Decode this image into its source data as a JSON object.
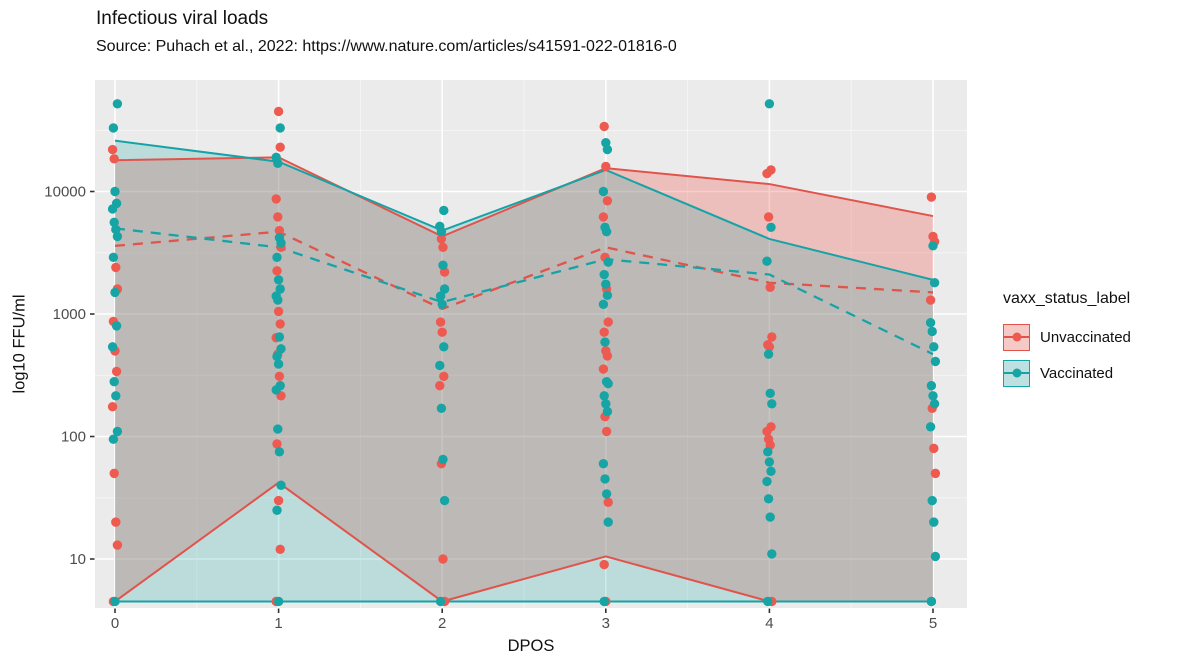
{
  "header": {
    "title": "Infectious viral loads",
    "subtitle": "Source: Puhach et al., 2022: https://www.nature.com/articles/s41591-022-01816-0"
  },
  "chart_data": {
    "type": "scatter",
    "title": "Infectious viral loads",
    "subtitle": "Source: Puhach et al., 2022: https://www.nature.com/articles/s41591-022-01816-0",
    "xlabel": "DPOS",
    "ylabel": "log10 FFU/ml",
    "x_ticks": [
      0,
      1,
      2,
      3,
      4,
      5
    ],
    "x_tick_labels": [
      "0",
      "1",
      "2",
      "3",
      "4",
      "5"
    ],
    "y_ticks": [
      10,
      100,
      1000,
      10000
    ],
    "y_tick_labels": [
      "10",
      "100",
      "1000",
      "10000"
    ],
    "y_scale": "log10",
    "ylim": [
      4,
      82000
    ],
    "grid": true,
    "panel_color": "#ebebeb",
    "grid_color": "#ffffff",
    "tick_color": "#333333",
    "tick_label_color": "#4d4d4d",
    "legend": {
      "title": "vaxx_status_label",
      "position": "right"
    },
    "series": [
      {
        "name": "Unvaccinated",
        "point_color": "#ee5a50",
        "line_color": "#e0544b",
        "ribbon_fill": "rgba(238,90,80,0.30)",
        "key_fill": "#f5cac6",
        "ribbon_upper": [
          18000,
          19000,
          4300,
          15500,
          11500,
          6300
        ],
        "ribbon_lower": [
          4.5,
          42,
          4.5,
          10.5,
          4.5,
          4.5
        ],
        "dashed_line": [
          3600,
          4700,
          1100,
          3500,
          1800,
          1500
        ],
        "points": [
          [
            0,
            22000
          ],
          [
            0,
            18500
          ],
          [
            0,
            2400
          ],
          [
            0,
            1600
          ],
          [
            0,
            870
          ],
          [
            0,
            500
          ],
          [
            0,
            340
          ],
          [
            0,
            175
          ],
          [
            0,
            50
          ],
          [
            0,
            20
          ],
          [
            0,
            13
          ],
          [
            0,
            4.5
          ],
          [
            1,
            45000
          ],
          [
            1,
            23000
          ],
          [
            1,
            8700
          ],
          [
            1,
            6200
          ],
          [
            1,
            4800
          ],
          [
            1,
            3500
          ],
          [
            1,
            2250
          ],
          [
            1,
            1050
          ],
          [
            1,
            830
          ],
          [
            1,
            640
          ],
          [
            1,
            470
          ],
          [
            1,
            310
          ],
          [
            1,
            215
          ],
          [
            1,
            87
          ],
          [
            1,
            30
          ],
          [
            1,
            12
          ],
          [
            1,
            4.5
          ],
          [
            2,
            4100
          ],
          [
            2,
            3500
          ],
          [
            2,
            2200
          ],
          [
            2,
            860
          ],
          [
            2,
            710
          ],
          [
            2,
            310
          ],
          [
            2,
            260
          ],
          [
            2,
            60
          ],
          [
            2,
            10
          ],
          [
            2,
            4.5
          ],
          [
            3,
            34000
          ],
          [
            3,
            16000
          ],
          [
            3,
            8400
          ],
          [
            3,
            6200
          ],
          [
            3,
            2900
          ],
          [
            3,
            1600
          ],
          [
            3,
            860
          ],
          [
            3,
            710
          ],
          [
            3,
            500
          ],
          [
            3,
            455
          ],
          [
            3,
            355
          ],
          [
            3,
            145
          ],
          [
            3,
            110
          ],
          [
            3,
            29
          ],
          [
            3,
            9
          ],
          [
            3,
            4.5
          ],
          [
            4,
            15000
          ],
          [
            4,
            14000
          ],
          [
            4,
            6200
          ],
          [
            4,
            1650
          ],
          [
            4,
            650
          ],
          [
            4,
            560
          ],
          [
            4,
            540
          ],
          [
            4,
            120
          ],
          [
            4,
            110
          ],
          [
            4,
            95
          ],
          [
            4,
            85
          ],
          [
            4,
            4.5
          ],
          [
            5,
            9000
          ],
          [
            5,
            4300
          ],
          [
            5,
            3900
          ],
          [
            5,
            1300
          ],
          [
            5,
            170
          ],
          [
            5,
            80
          ],
          [
            5,
            50
          ],
          [
            5,
            4.5
          ]
        ]
      },
      {
        "name": "Vaccinated",
        "point_color": "#17a4a4",
        "line_color": "#16a3a7",
        "ribbon_fill": "rgba(23,164,164,0.22)",
        "key_fill": "#bfe0e0",
        "ribbon_upper": [
          26000,
          17500,
          4800,
          15000,
          4100,
          1900
        ],
        "ribbon_lower": [
          4.5,
          4.5,
          4.5,
          4.5,
          4.5,
          4.5
        ],
        "dashed_line": [
          5000,
          3500,
          1250,
          2800,
          2100,
          470
        ],
        "points": [
          [
            0,
            52000
          ],
          [
            0,
            33000
          ],
          [
            0,
            10000
          ],
          [
            0,
            8000
          ],
          [
            0,
            7200
          ],
          [
            0,
            5600
          ],
          [
            0,
            4900
          ],
          [
            0,
            4300
          ],
          [
            0,
            2900
          ],
          [
            0,
            1500
          ],
          [
            0,
            800
          ],
          [
            0,
            540
          ],
          [
            0,
            280
          ],
          [
            0,
            215
          ],
          [
            0,
            110
          ],
          [
            0,
            95
          ],
          [
            0,
            4.5
          ],
          [
            1,
            33000
          ],
          [
            1,
            19000
          ],
          [
            1,
            17000
          ],
          [
            1,
            4200
          ],
          [
            1,
            3800
          ],
          [
            1,
            2900
          ],
          [
            1,
            1900
          ],
          [
            1,
            1600
          ],
          [
            1,
            1400
          ],
          [
            1,
            1300
          ],
          [
            1,
            650
          ],
          [
            1,
            520
          ],
          [
            1,
            450
          ],
          [
            1,
            390
          ],
          [
            1,
            260
          ],
          [
            1,
            240
          ],
          [
            1,
            115
          ],
          [
            1,
            75
          ],
          [
            1,
            40
          ],
          [
            1,
            25
          ],
          [
            1,
            4.5
          ],
          [
            2,
            7000
          ],
          [
            2,
            5200
          ],
          [
            2,
            4700
          ],
          [
            2,
            2500
          ],
          [
            2,
            1600
          ],
          [
            2,
            1400
          ],
          [
            2,
            1200
          ],
          [
            2,
            540
          ],
          [
            2,
            380
          ],
          [
            2,
            170
          ],
          [
            2,
            65
          ],
          [
            2,
            30
          ],
          [
            2,
            4.5
          ],
          [
            3,
            25000
          ],
          [
            3,
            22000
          ],
          [
            3,
            10000
          ],
          [
            3,
            5100
          ],
          [
            3,
            4700
          ],
          [
            3,
            2650
          ],
          [
            3,
            2100
          ],
          [
            3,
            1750
          ],
          [
            3,
            1420
          ],
          [
            3,
            1200
          ],
          [
            3,
            590
          ],
          [
            3,
            280
          ],
          [
            3,
            270
          ],
          [
            3,
            215
          ],
          [
            3,
            185
          ],
          [
            3,
            160
          ],
          [
            3,
            60
          ],
          [
            3,
            45
          ],
          [
            3,
            34
          ],
          [
            3,
            20
          ],
          [
            3,
            4.5
          ],
          [
            4,
            52000
          ],
          [
            4,
            5100
          ],
          [
            4,
            2700
          ],
          [
            4,
            470
          ],
          [
            4,
            225
          ],
          [
            4,
            185
          ],
          [
            4,
            75
          ],
          [
            4,
            62
          ],
          [
            4,
            52
          ],
          [
            4,
            43
          ],
          [
            4,
            31
          ],
          [
            4,
            22
          ],
          [
            4,
            11
          ],
          [
            4,
            4.5
          ],
          [
            5,
            3600
          ],
          [
            5,
            1800
          ],
          [
            5,
            850
          ],
          [
            5,
            720
          ],
          [
            5,
            540
          ],
          [
            5,
            410
          ],
          [
            5,
            260
          ],
          [
            5,
            215
          ],
          [
            5,
            185
          ],
          [
            5,
            120
          ],
          [
            5,
            30
          ],
          [
            5,
            20
          ],
          [
            5,
            10.5
          ],
          [
            5,
            4.5
          ]
        ]
      }
    ]
  }
}
